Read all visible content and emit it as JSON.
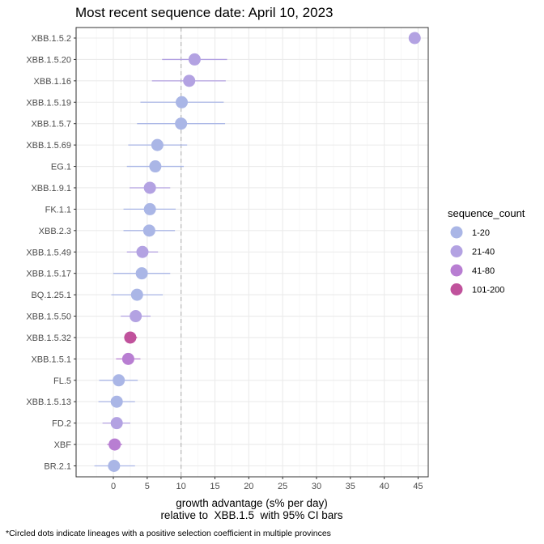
{
  "chart_data": {
    "type": "scatter",
    "title": "Most recent sequence date: April 10, 2023",
    "xlabel_line1": "growth advantage (s% per day)",
    "xlabel_line2": "relative to  XBB.1.5  with 95% CI bars",
    "footnote": "*Circled dots indicate lineages with a positive selection coefficient in multiple provinces",
    "xlim": [
      -5.5,
      46.5
    ],
    "xticks": [
      0,
      5,
      10,
      15,
      20,
      25,
      30,
      35,
      40,
      45
    ],
    "reference_line_x": 10,
    "grid": true,
    "legend": {
      "title": "sequence_count",
      "placement": "right",
      "entries": [
        {
          "label": "1-20",
          "color": "#aab6e6"
        },
        {
          "label": "21-40",
          "color": "#b3a2e2"
        },
        {
          "label": "41-80",
          "color": "#b87ed2"
        },
        {
          "label": "101-200",
          "color": "#c0529c"
        }
      ]
    },
    "points": [
      {
        "lineage": "XBB.1.5.2",
        "x": 44.5,
        "lo": 44.5,
        "hi": 44.5,
        "group": "21-40"
      },
      {
        "lineage": "XBB.1.5.20",
        "x": 12.0,
        "lo": 7.2,
        "hi": 16.8,
        "group": "21-40"
      },
      {
        "lineage": "XBB.1.16",
        "x": 11.2,
        "lo": 5.7,
        "hi": 16.6,
        "group": "21-40"
      },
      {
        "lineage": "XBB.1.5.19",
        "x": 10.1,
        "lo": 4.0,
        "hi": 16.3,
        "group": "1-20"
      },
      {
        "lineage": "XBB.1.5.7",
        "x": 10.0,
        "lo": 3.5,
        "hi": 16.5,
        "group": "1-20"
      },
      {
        "lineage": "XBB.1.5.69",
        "x": 6.5,
        "lo": 2.2,
        "hi": 10.9,
        "group": "1-20"
      },
      {
        "lineage": "EG.1",
        "x": 6.2,
        "lo": 2.0,
        "hi": 10.4,
        "group": "1-20"
      },
      {
        "lineage": "XBB.1.9.1",
        "x": 5.4,
        "lo": 2.4,
        "hi": 8.4,
        "group": "21-40"
      },
      {
        "lineage": "FK.1.1",
        "x": 5.4,
        "lo": 1.5,
        "hi": 9.2,
        "group": "1-20"
      },
      {
        "lineage": "XBB.2.3",
        "x": 5.3,
        "lo": 1.5,
        "hi": 9.1,
        "group": "1-20"
      },
      {
        "lineage": "XBB.1.5.49",
        "x": 4.3,
        "lo": 2.0,
        "hi": 6.6,
        "group": "21-40"
      },
      {
        "lineage": "XBB.1.5.17",
        "x": 4.2,
        "lo": 0.0,
        "hi": 8.4,
        "group": "1-20"
      },
      {
        "lineage": "BQ.1.25.1",
        "x": 3.5,
        "lo": -0.3,
        "hi": 7.3,
        "group": "1-20"
      },
      {
        "lineage": "XBB.1.5.50",
        "x": 3.3,
        "lo": 1.1,
        "hi": 5.5,
        "group": "21-40"
      },
      {
        "lineage": "XBB.1.5.32",
        "x": 2.5,
        "lo": 1.6,
        "hi": 3.5,
        "group": "101-200"
      },
      {
        "lineage": "XBB.1.5.1",
        "x": 2.2,
        "lo": 0.4,
        "hi": 4.0,
        "group": "41-80"
      },
      {
        "lineage": "FL.5",
        "x": 0.8,
        "lo": -2.1,
        "hi": 3.6,
        "group": "1-20"
      },
      {
        "lineage": "XBB.1.5.13",
        "x": 0.5,
        "lo": -2.2,
        "hi": 3.2,
        "group": "1-20"
      },
      {
        "lineage": "FD.2",
        "x": 0.5,
        "lo": -1.6,
        "hi": 2.5,
        "group": "21-40"
      },
      {
        "lineage": "XBF",
        "x": 0.2,
        "lo": -0.9,
        "hi": 1.3,
        "group": "41-80"
      },
      {
        "lineage": "BR.2.1",
        "x": 0.1,
        "lo": -2.8,
        "hi": 3.2,
        "group": "1-20"
      }
    ]
  }
}
